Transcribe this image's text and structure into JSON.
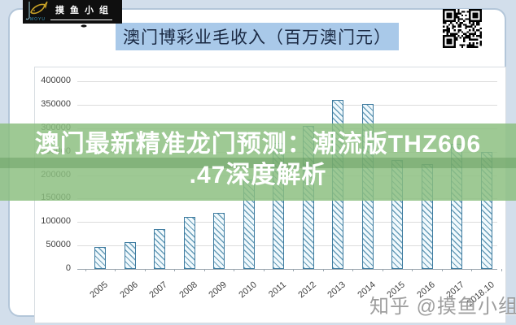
{
  "header": {
    "title": "澳门博彩业毛收入（百万澳门元）",
    "logo": {
      "brand": "摸鱼小组",
      "sub": "MOYU",
      "icon": "fish-icon",
      "colors": {
        "box": "#0f0f0f",
        "fish_gold": "#c9a227",
        "sub_teal": "#3e9bbf"
      }
    },
    "qr_icon": "qr-code"
  },
  "banner": {
    "line1": "澳门最新精准龙门预测：潮流版THZ606",
    "line2": ".47深度解析",
    "text_color": "#ffffff",
    "background_color": "#8bbf80"
  },
  "watermark": {
    "text": "知乎 @摸鱼小组"
  },
  "chart_data": {
    "type": "bar",
    "title": "澳门博彩业毛收入（百万澳门元）",
    "categories": [
      "2005",
      "2006",
      "2007",
      "2008",
      "2009",
      "2010",
      "2011",
      "2012",
      "2013",
      "2014",
      "2015",
      "2016",
      "2017",
      "2018.10"
    ],
    "values": [
      47000,
      57500,
      84000,
      110000,
      120000,
      190000,
      269000,
      305000,
      361000,
      352000,
      232000,
      223000,
      266000,
      249000
    ],
    "xlabel": "",
    "ylabel": "",
    "ylim": [
      0,
      400000
    ],
    "ytick_step": 50000,
    "grid": true,
    "legend": "none",
    "bar_style": "diagonal-hatch",
    "bar_border_color": "#3f7ca0",
    "bar_hatch_color": "#4d8bab",
    "bar_fill_color": "#f0f9fd"
  }
}
